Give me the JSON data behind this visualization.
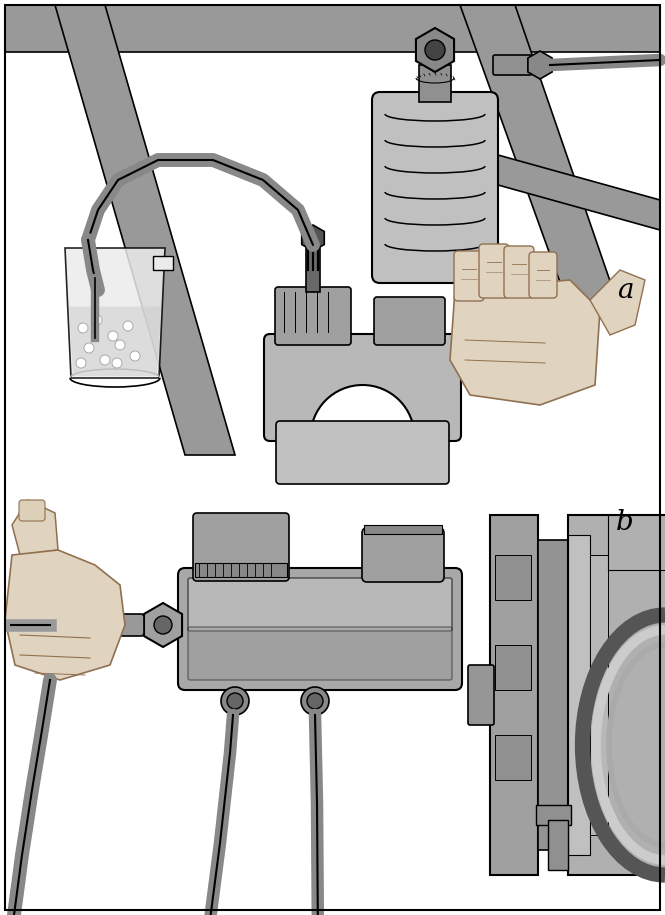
{
  "background_color": "#ffffff",
  "border_color": "#000000",
  "label_a": "a",
  "label_b": "b",
  "gc": "#aaaaaa",
  "gd": "#888888",
  "gm": "#b0b0b0",
  "gl": "#cccccc",
  "gvd": "#555555",
  "lc": "#000000",
  "sk": "#e0d4c0",
  "ske": "#907050",
  "figsize": [
    6.65,
    9.15
  ],
  "dpi": 100
}
